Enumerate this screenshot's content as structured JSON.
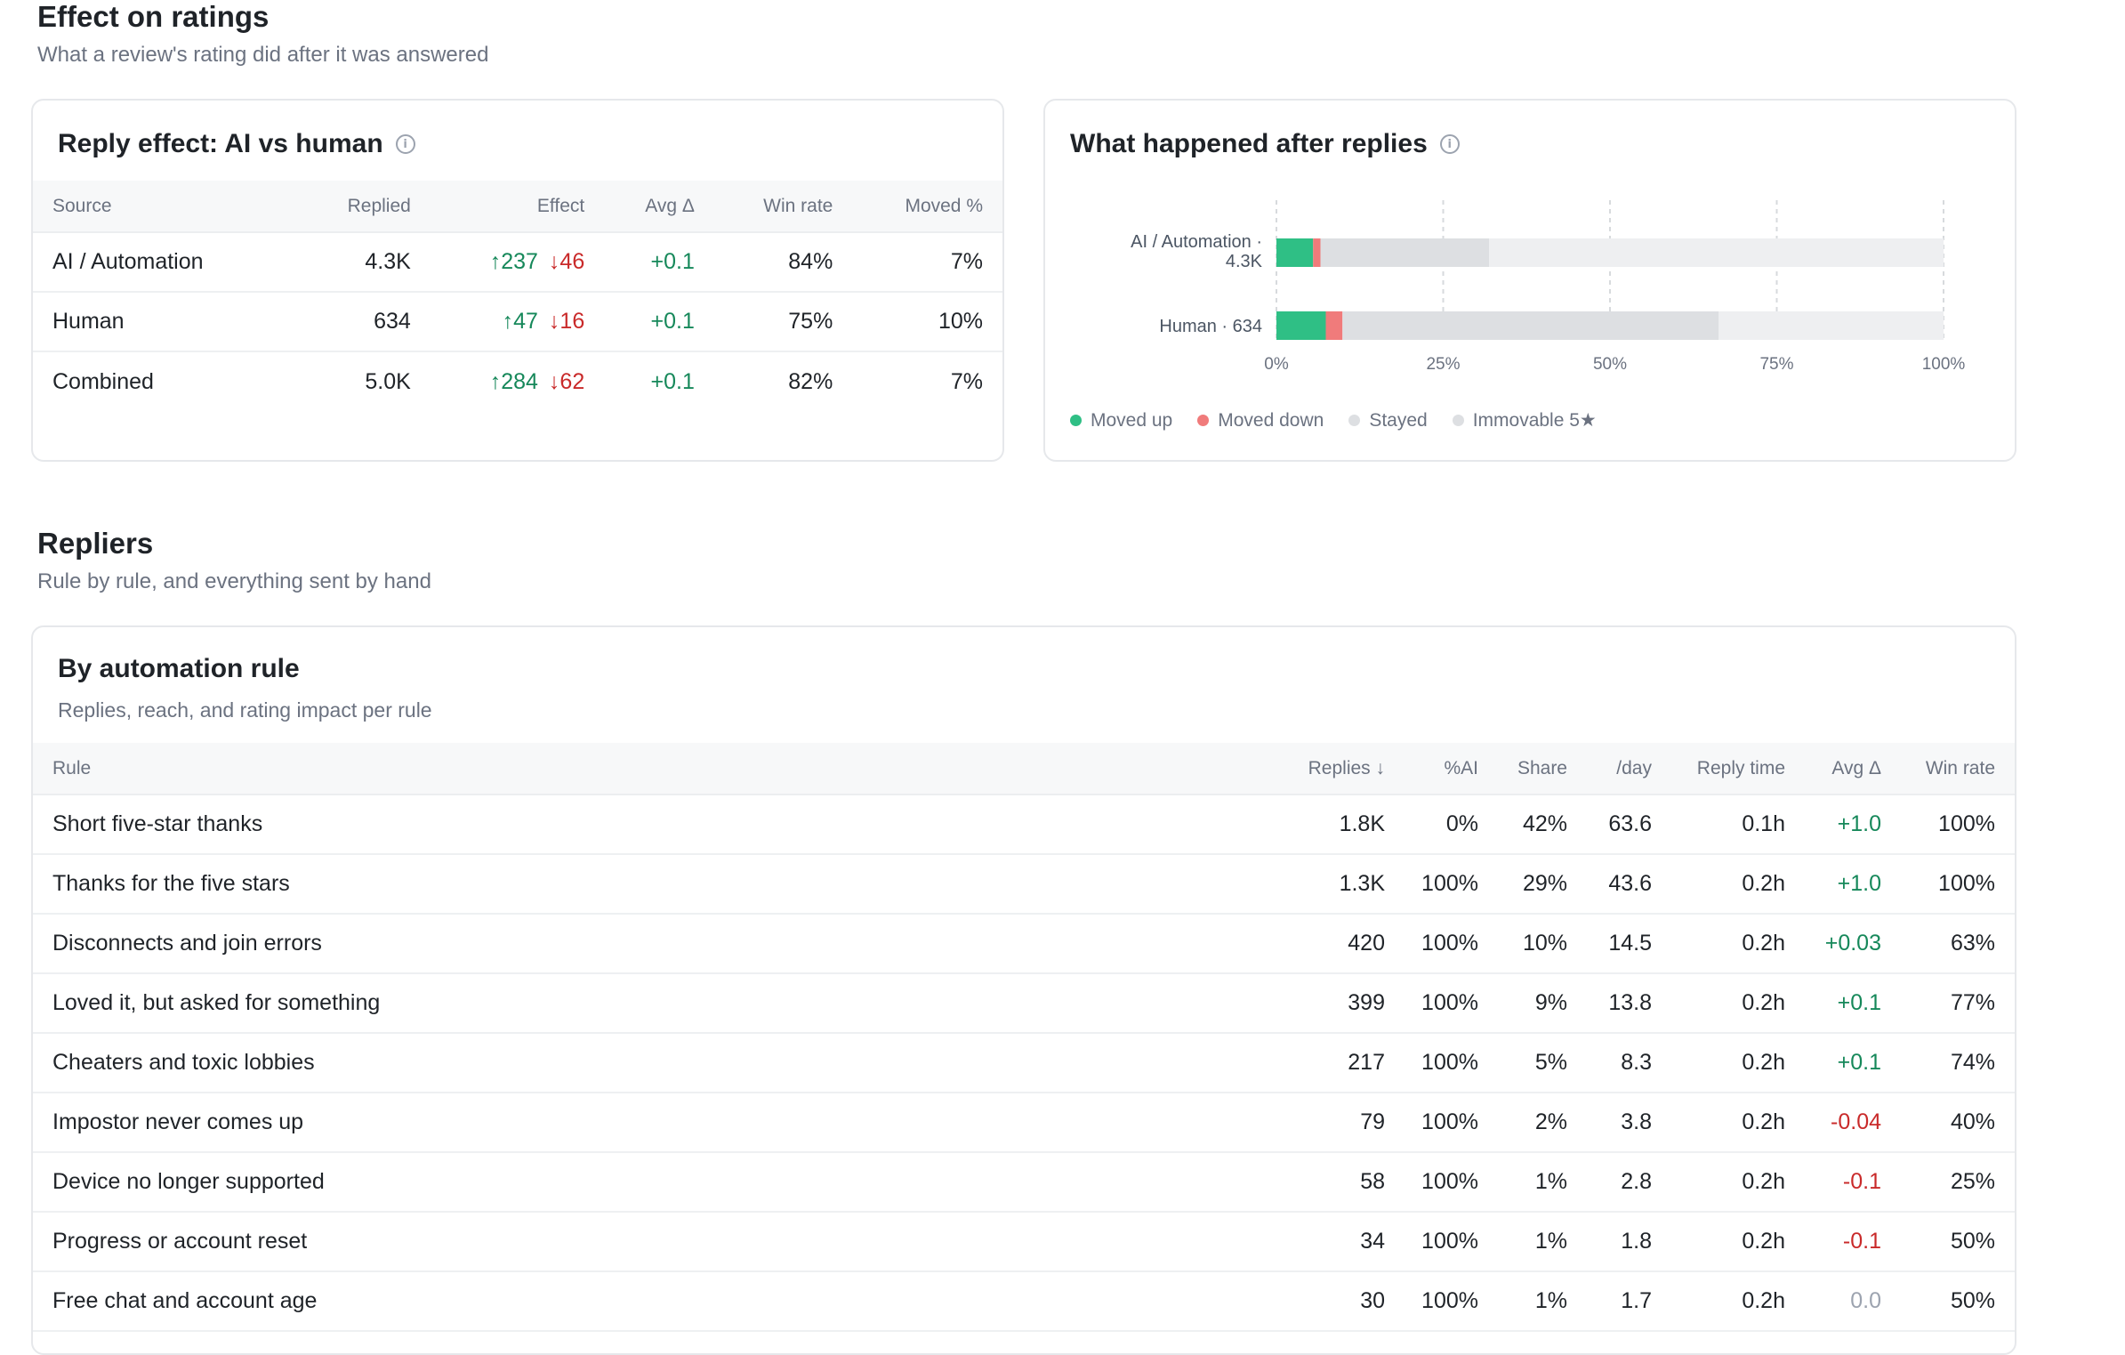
{
  "effect_section": {
    "title": "Effect on ratings",
    "subtitle": "What a review's rating did after it was answered"
  },
  "reply_effect_card": {
    "title": "Reply effect: AI vs human",
    "columns": [
      "Source",
      "Replied",
      "Effect",
      "Avg Δ",
      "Win rate",
      "Moved %"
    ],
    "rows": [
      {
        "source": "AI / Automation",
        "replied": "4.3K",
        "up": "↑237",
        "down": "↓46",
        "avg": "+0.1",
        "win": "84%",
        "moved": "7%"
      },
      {
        "source": "Human",
        "replied": "634",
        "up": "↑47",
        "down": "↓16",
        "avg": "+0.1",
        "win": "75%",
        "moved": "10%"
      },
      {
        "source": "Combined",
        "replied": "5.0K",
        "up": "↑284",
        "down": "↓62",
        "avg": "+0.1",
        "win": "82%",
        "moved": "7%"
      }
    ]
  },
  "after_replies_card": {
    "title": "What happened after replies",
    "legend": [
      {
        "label": "Moved up",
        "color": "#2fbf85"
      },
      {
        "label": "Moved down",
        "color": "#f07b7b"
      },
      {
        "label": "Stayed",
        "color": "#dddfe2"
      },
      {
        "label": "Immovable 5★",
        "color": "#dddfe2"
      }
    ]
  },
  "chart_data": {
    "type": "bar",
    "orientation": "horizontal",
    "stacked": true,
    "categories": [
      "AI / Automation · 4.3K",
      "Human · 634"
    ],
    "series": [
      {
        "name": "Moved up",
        "color": "#2fbf85",
        "values": [
          5.5,
          7.4
        ]
      },
      {
        "name": "Moved down",
        "color": "#f07b7b",
        "values": [
          1.1,
          2.5
        ]
      },
      {
        "name": "Stayed",
        "color": "#dddfe2",
        "values": [
          25.3,
          56.4
        ]
      },
      {
        "name": "Immovable 5★",
        "color": "#eeeff1",
        "values": [
          68.1,
          33.7
        ]
      }
    ],
    "x_ticks": [
      "0%",
      "25%",
      "50%",
      "75%",
      "100%"
    ],
    "xlim": [
      0,
      100
    ],
    "grid": true,
    "legend_position": "bottom-left"
  },
  "repliers_section": {
    "title": "Repliers",
    "subtitle": "Rule by rule, and everything sent by hand"
  },
  "rules_card": {
    "title": "By automation rule",
    "subtitle": "Replies, reach, and rating impact per rule",
    "columns": [
      "Rule",
      "Replies ↓",
      "%AI",
      "Share",
      "/day",
      "Reply time",
      "Avg Δ",
      "Win rate"
    ],
    "rows": [
      {
        "rule": "Short five-star thanks",
        "replies": "1.8K",
        "ai": "0%",
        "share": "42%",
        "day": "63.6",
        "time": "0.1h",
        "avg": "+1.0",
        "avg_sign": "pos",
        "win": "100%"
      },
      {
        "rule": "Thanks for the five stars",
        "replies": "1.3K",
        "ai": "100%",
        "share": "29%",
        "day": "43.6",
        "time": "0.2h",
        "avg": "+1.0",
        "avg_sign": "pos",
        "win": "100%"
      },
      {
        "rule": "Disconnects and join errors",
        "replies": "420",
        "ai": "100%",
        "share": "10%",
        "day": "14.5",
        "time": "0.2h",
        "avg": "+0.03",
        "avg_sign": "pos",
        "win": "63%"
      },
      {
        "rule": "Loved it, but asked for something",
        "replies": "399",
        "ai": "100%",
        "share": "9%",
        "day": "13.8",
        "time": "0.2h",
        "avg": "+0.1",
        "avg_sign": "pos",
        "win": "77%"
      },
      {
        "rule": "Cheaters and toxic lobbies",
        "replies": "217",
        "ai": "100%",
        "share": "5%",
        "day": "8.3",
        "time": "0.2h",
        "avg": "+0.1",
        "avg_sign": "pos",
        "win": "74%"
      },
      {
        "rule": "Impostor never comes up",
        "replies": "79",
        "ai": "100%",
        "share": "2%",
        "day": "3.8",
        "time": "0.2h",
        "avg": "-0.04",
        "avg_sign": "neg",
        "win": "40%"
      },
      {
        "rule": "Device no longer supported",
        "replies": "58",
        "ai": "100%",
        "share": "1%",
        "day": "2.8",
        "time": "0.2h",
        "avg": "-0.1",
        "avg_sign": "neg",
        "win": "25%"
      },
      {
        "rule": "Progress or account reset",
        "replies": "34",
        "ai": "100%",
        "share": "1%",
        "day": "1.8",
        "time": "0.2h",
        "avg": "-0.1",
        "avg_sign": "neg",
        "win": "50%"
      },
      {
        "rule": "Free chat and account age",
        "replies": "30",
        "ai": "100%",
        "share": "1%",
        "day": "1.7",
        "time": "0.2h",
        "avg": "0.0",
        "avg_sign": "neu",
        "win": "50%"
      }
    ]
  }
}
